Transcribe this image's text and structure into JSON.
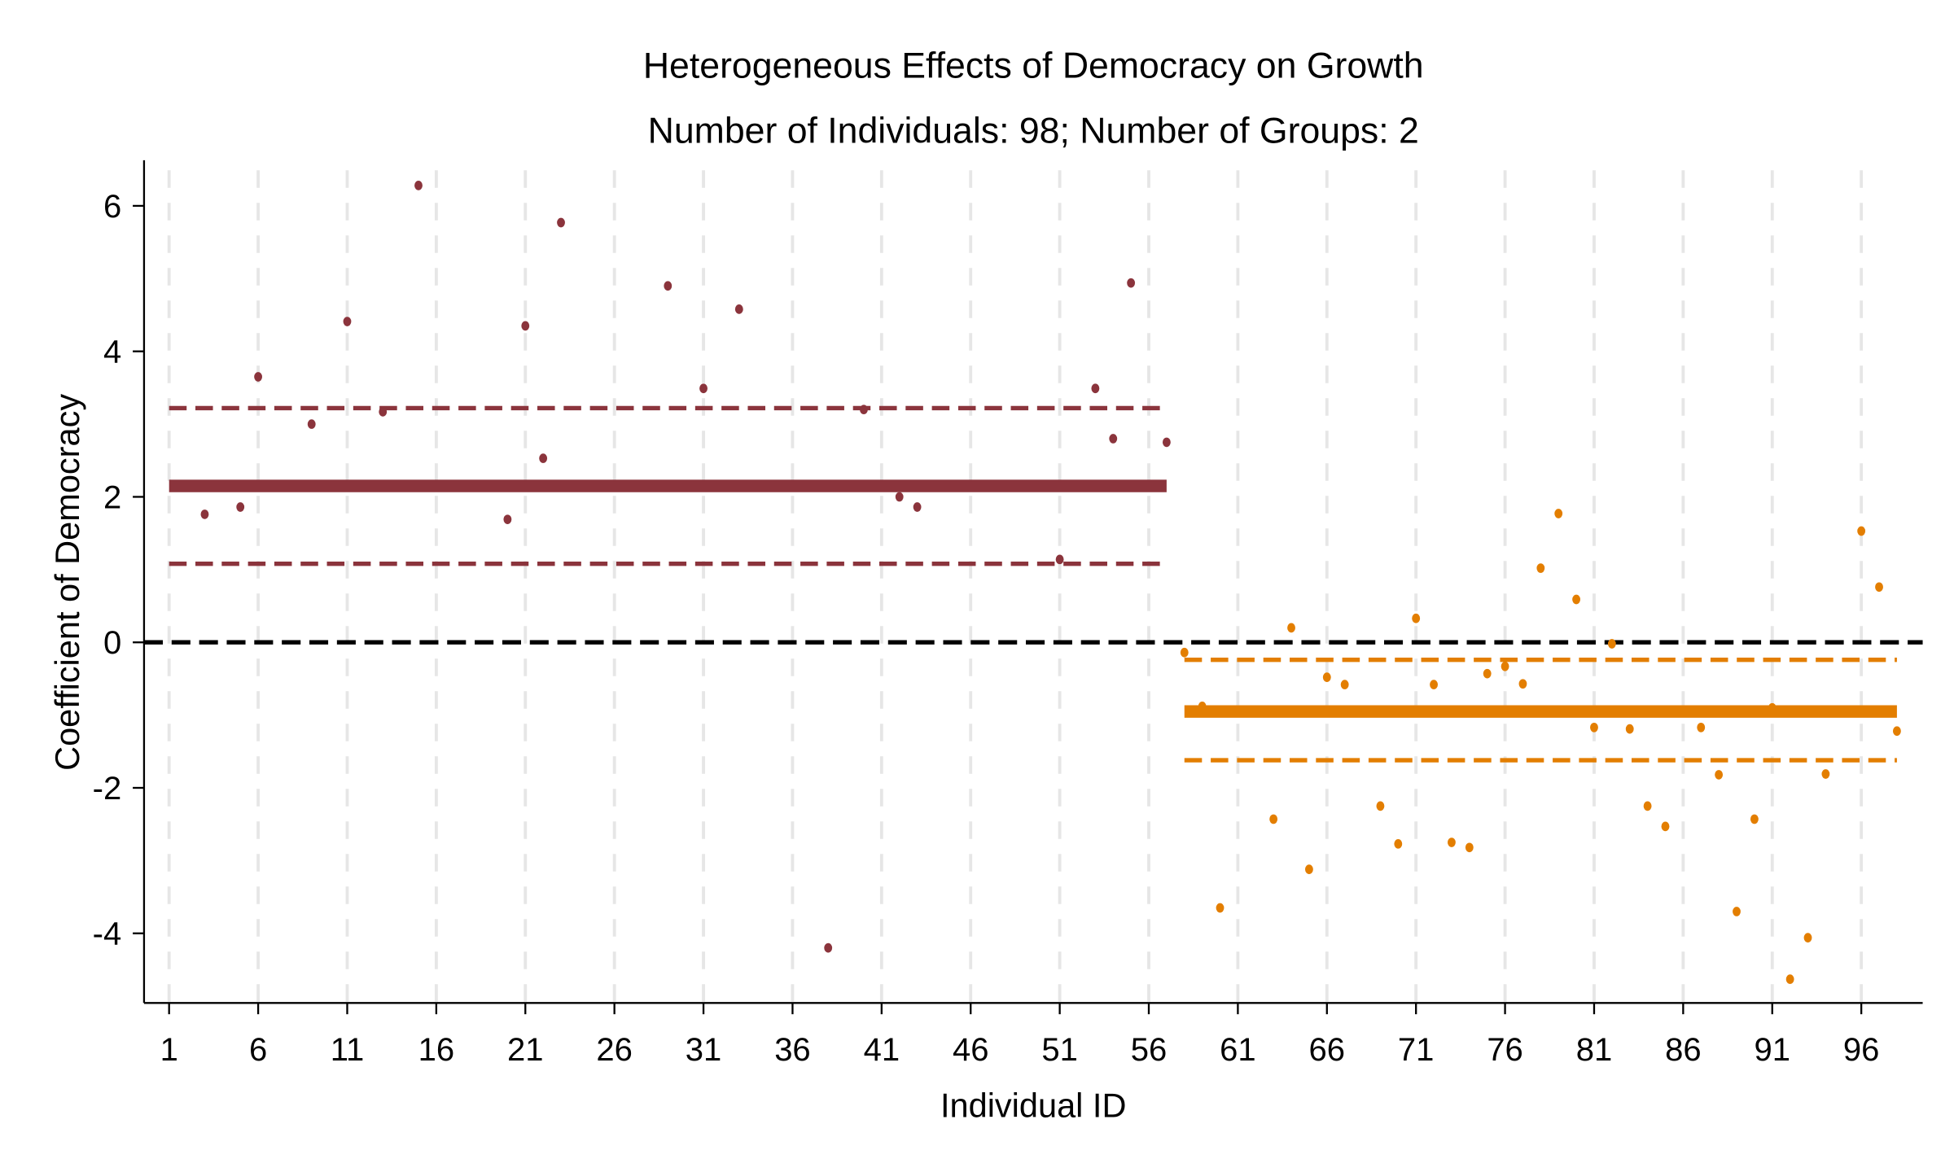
{
  "chart_data": {
    "type": "scatter",
    "title": "Heterogeneous Effects of Democracy on Growth",
    "subtitle": "Number of Individuals: 98; Number of Groups: 2",
    "xlabel": "Individual ID",
    "ylabel": "Coefficient of Democracy",
    "xlim": [
      0,
      99.5
    ],
    "ylim": [
      -5,
      6.65
    ],
    "xticks": [
      1,
      6,
      11,
      16,
      21,
      26,
      31,
      36,
      41,
      46,
      51,
      56,
      61,
      66,
      71,
      76,
      81,
      86,
      91,
      96
    ],
    "yticks": [
      -4,
      -2,
      0,
      2,
      4,
      6
    ],
    "grid": "vertical dashed at x ticks",
    "reference_line": {
      "y": 0,
      "color": "#000000",
      "style": "dashed"
    },
    "groups": [
      {
        "color": "#8B343C",
        "x_range": [
          1,
          57
        ],
        "estimate": 2.15,
        "ci_upper": 3.22,
        "ci_lower": 1.08,
        "points": [
          [
            3,
            1.76
          ],
          [
            5,
            1.86
          ],
          [
            6,
            3.65
          ],
          [
            9,
            3.0
          ],
          [
            11,
            4.41
          ],
          [
            13,
            3.17
          ],
          [
            15,
            6.28
          ],
          [
            20,
            1.69
          ],
          [
            21,
            4.35
          ],
          [
            22,
            2.53
          ],
          [
            23,
            5.77
          ],
          [
            29,
            4.9
          ],
          [
            31,
            3.49
          ],
          [
            33,
            4.58
          ],
          [
            38,
            -4.2
          ],
          [
            40,
            3.2
          ],
          [
            42,
            2.0
          ],
          [
            43,
            1.86
          ],
          [
            51,
            1.14
          ],
          [
            53,
            3.49
          ],
          [
            54,
            2.8
          ],
          [
            55,
            4.94
          ],
          [
            57,
            2.75
          ]
        ]
      },
      {
        "color": "#E37E00",
        "x_range": [
          58,
          98
        ],
        "estimate": -0.95,
        "ci_upper": -0.24,
        "ci_lower": -1.62,
        "points": [
          [
            58,
            -0.14
          ],
          [
            59,
            -0.88
          ],
          [
            60,
            -3.65
          ],
          [
            63,
            -2.43
          ],
          [
            64,
            0.2
          ],
          [
            65,
            -3.12
          ],
          [
            66,
            -0.48
          ],
          [
            67,
            -0.58
          ],
          [
            69,
            -2.25
          ],
          [
            70,
            -2.77
          ],
          [
            71,
            0.33
          ],
          [
            72,
            -0.58
          ],
          [
            73,
            -2.75
          ],
          [
            74,
            -2.82
          ],
          [
            75,
            -0.43
          ],
          [
            76,
            -0.33
          ],
          [
            77,
            -0.57
          ],
          [
            78,
            1.02
          ],
          [
            79,
            1.77
          ],
          [
            80,
            0.59
          ],
          [
            81,
            -1.17
          ],
          [
            82,
            -0.02
          ],
          [
            83,
            -1.19
          ],
          [
            84,
            -2.25
          ],
          [
            85,
            -2.53
          ],
          [
            87,
            -1.17
          ],
          [
            88,
            -1.82
          ],
          [
            89,
            -3.7
          ],
          [
            90,
            -2.43
          ],
          [
            91,
            -0.9
          ],
          [
            92,
            -4.63
          ],
          [
            93,
            -4.06
          ],
          [
            94,
            -1.81
          ],
          [
            96,
            1.53
          ],
          [
            97,
            0.76
          ],
          [
            98,
            -1.22
          ]
        ]
      }
    ]
  }
}
